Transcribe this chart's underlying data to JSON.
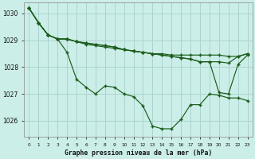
{
  "xlabel": "Graphe pression niveau de la mer (hPa)",
  "bg_color": "#cceee8",
  "grid_color": "#aad4ce",
  "line_color": "#1a5c1a",
  "ylim": [
    1025.4,
    1030.4
  ],
  "xlim": [
    -0.5,
    23.5
  ],
  "yticks": [
    1026,
    1027,
    1028,
    1029,
    1030
  ],
  "xtick_labels": [
    "0",
    "1",
    "2",
    "3",
    "4",
    "5",
    "6",
    "7",
    "8",
    "9",
    "10",
    "11",
    "12",
    "13",
    "14",
    "15",
    "16",
    "17",
    "18",
    "19",
    "20",
    "21",
    "22",
    "23"
  ],
  "series1": [
    1030.2,
    1029.65,
    1029.2,
    1029.05,
    1028.55,
    1027.55,
    1027.25,
    1027.0,
    1027.3,
    1027.25,
    1027.0,
    1026.9,
    1026.55,
    1025.8,
    1025.7,
    1025.7,
    1026.05,
    1026.6,
    1026.6,
    1027.0,
    1026.95,
    1026.85,
    1026.85,
    1026.75
  ],
  "series2": [
    1030.2,
    1029.65,
    1029.2,
    1029.05,
    1029.05,
    1028.95,
    1028.9,
    1028.85,
    1028.8,
    1028.75,
    1028.65,
    1028.6,
    1028.55,
    1028.5,
    1028.45,
    1028.4,
    1028.35,
    1028.3,
    1028.2,
    1028.2,
    1027.05,
    1027.0,
    1028.1,
    1028.45
  ],
  "series3": [
    1030.2,
    1029.65,
    1029.2,
    1029.05,
    1029.05,
    1028.95,
    1028.9,
    1028.85,
    1028.8,
    1028.75,
    1028.65,
    1028.6,
    1028.55,
    1028.5,
    1028.45,
    1028.4,
    1028.35,
    1028.3,
    1028.2,
    1028.2,
    1028.2,
    1028.15,
    1028.4,
    1028.5
  ],
  "series4": [
    1030.2,
    1029.65,
    1029.2,
    1029.05,
    1029.05,
    1028.95,
    1028.85,
    1028.8,
    1028.75,
    1028.7,
    1028.65,
    1028.6,
    1028.55,
    1028.5,
    1028.5,
    1028.45,
    1028.45,
    1028.45,
    1028.45,
    1028.45,
    1028.45,
    1028.4,
    1028.4,
    1028.5
  ]
}
